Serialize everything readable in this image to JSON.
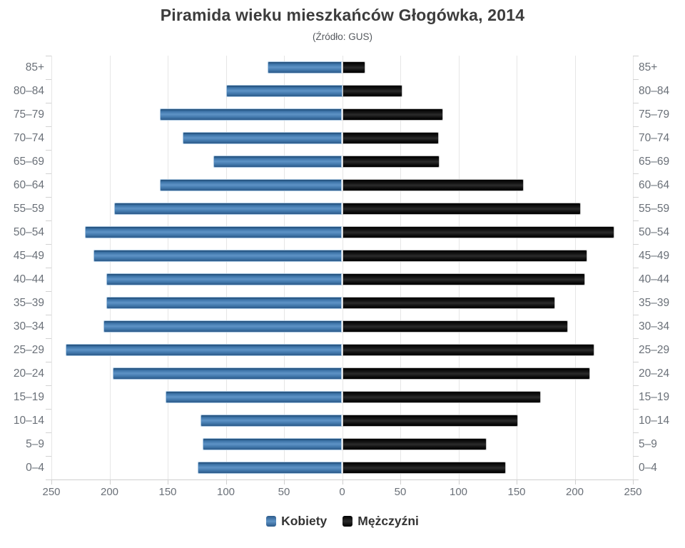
{
  "title": "Piramida wieku mieszkańców Głogówka, 2014",
  "subtitle": "(Źródło: GUS)",
  "legend": {
    "items": [
      {
        "label": "Kobiety",
        "color": "#4a7fb5"
      },
      {
        "label": "Mężczyźni",
        "color": "#111111"
      }
    ],
    "position": "bottom"
  },
  "colors": {
    "female_bar": "#4a7fb5",
    "male_bar": "#111111",
    "gridline": "#e6e6e6",
    "axis_line": "#cfcfcf",
    "axis_label": "#6a7078",
    "title_text": "#3c3c3c"
  },
  "chart_data": {
    "type": "bar",
    "subtype": "population-pyramid",
    "title": "Piramida wieku mieszkańców Głogówka, 2014",
    "subtitle": "(Źródło: GUS)",
    "grid": true,
    "legend_position": "bottom",
    "categories": [
      "85+",
      "80–84",
      "75–79",
      "70–74",
      "65–69",
      "60–64",
      "55–59",
      "50–54",
      "45–49",
      "40–44",
      "35–39",
      "30–34",
      "25–29",
      "20–24",
      "15–19",
      "10–14",
      "5–9",
      "0–4"
    ],
    "series": [
      {
        "name": "Kobiety",
        "side": "left",
        "color": "#4a7fb5",
        "values": [
          64,
          100,
          157,
          137,
          111,
          157,
          196,
          221,
          214,
          203,
          203,
          205,
          238,
          197,
          152,
          122,
          120,
          124
        ]
      },
      {
        "name": "Mężczyźni",
        "side": "right",
        "color": "#111111",
        "values": [
          20,
          52,
          87,
          83,
          84,
          156,
          205,
          234,
          211,
          209,
          183,
          194,
          217,
          213,
          171,
          151,
          124,
          141
        ]
      }
    ],
    "x_axis": {
      "tick_labels": [
        "250",
        "200",
        "150",
        "100",
        "50",
        "0",
        "50",
        "100",
        "150",
        "200",
        "250"
      ],
      "max_each_side": 250,
      "tick_step": 50
    }
  }
}
